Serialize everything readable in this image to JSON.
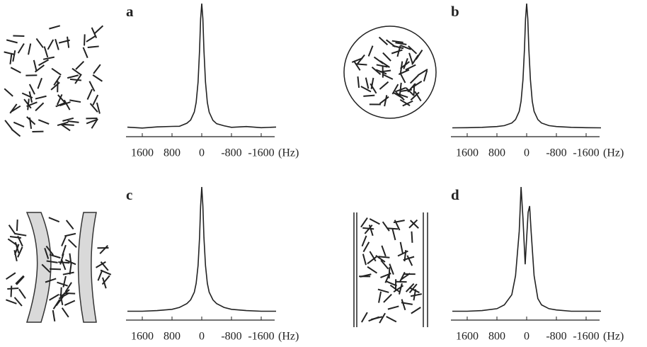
{
  "chart_data": [
    {
      "type": "line",
      "title": "a",
      "xlabel": "(Hz)",
      "x": [
        2000,
        1600,
        1200,
        800,
        600,
        400,
        300,
        200,
        150,
        100,
        60,
        30,
        0,
        -30,
        -60,
        -100,
        -150,
        -200,
        -300,
        -400,
        -600,
        -800,
        -1200,
        -1600,
        -2000
      ],
      "values": [
        2.5,
        1.8,
        2.7,
        3.1,
        3.2,
        5.6,
        8.1,
        14.5,
        22,
        38,
        63,
        88,
        100,
        88,
        63,
        38,
        22,
        14.3,
        7.9,
        5.2,
        3.6,
        2.4,
        3.0,
        2.1,
        2.6
      ],
      "color": "#222222",
      "xlim": [
        2000,
        -2000
      ],
      "ylim": [
        -5,
        100
      ],
      "xticks": [
        1600,
        800,
        0,
        -800,
        -1600
      ]
    },
    {
      "type": "line",
      "title": "b",
      "xlabel": "(Hz)",
      "x": [
        2000,
        1600,
        1200,
        800,
        600,
        400,
        300,
        200,
        150,
        100,
        60,
        30,
        0,
        -30,
        -60,
        -100,
        -150,
        -200,
        -300,
        -400,
        -600,
        -800,
        -1200,
        -1600,
        -2000
      ],
      "values": [
        2,
        2.1,
        2.4,
        3,
        3.7,
        5.8,
        8.5,
        15,
        23,
        40,
        64,
        88,
        100,
        88,
        64,
        40,
        23,
        15,
        8.5,
        5.8,
        3.7,
        3,
        2.4,
        2.1,
        2
      ],
      "color": "#222222",
      "xlim": [
        2000,
        -2000
      ],
      "ylim": [
        -5,
        100
      ],
      "xticks": [
        1600,
        800,
        0,
        -800,
        -1600
      ]
    },
    {
      "type": "line",
      "title": "c",
      "xlabel": "(Hz)",
      "x": [
        2000,
        1600,
        1200,
        800,
        600,
        400,
        300,
        200,
        150,
        100,
        60,
        30,
        0,
        -30,
        -60,
        -100,
        -150,
        -200,
        -300,
        -400,
        -600,
        -800,
        -1200,
        -1600,
        -2000
      ],
      "values": [
        2,
        2,
        2.5,
        3.5,
        5,
        8,
        11,
        17,
        24,
        38,
        60,
        85,
        100,
        85,
        60,
        38,
        24,
        17,
        11,
        8,
        5,
        3.5,
        2.5,
        2,
        2
      ],
      "color": "#222222",
      "xlim": [
        2000,
        -2000
      ],
      "ylim": [
        -5,
        100
      ],
      "xticks": [
        1600,
        800,
        0,
        -800,
        -1600
      ]
    },
    {
      "type": "line",
      "title": "d",
      "xlabel": "(Hz)",
      "x": [
        2000,
        1600,
        1200,
        800,
        600,
        400,
        300,
        200,
        150,
        100,
        40,
        0,
        -40,
        -80,
        -120,
        -200,
        -300,
        -400,
        -600,
        -800,
        -1200,
        -1600,
        -2000
      ],
      "values": [
        2,
        2,
        2.5,
        4,
        7,
        15,
        30,
        65,
        100,
        75,
        39,
        60,
        80,
        85,
        65,
        30,
        12,
        7,
        4,
        3,
        2,
        2,
        2
      ],
      "color": "#222222",
      "xlim": [
        2000,
        -2000
      ],
      "ylim": [
        -5,
        100
      ],
      "xticks": [
        1600,
        800,
        0,
        -800,
        -1600
      ]
    }
  ]
}
